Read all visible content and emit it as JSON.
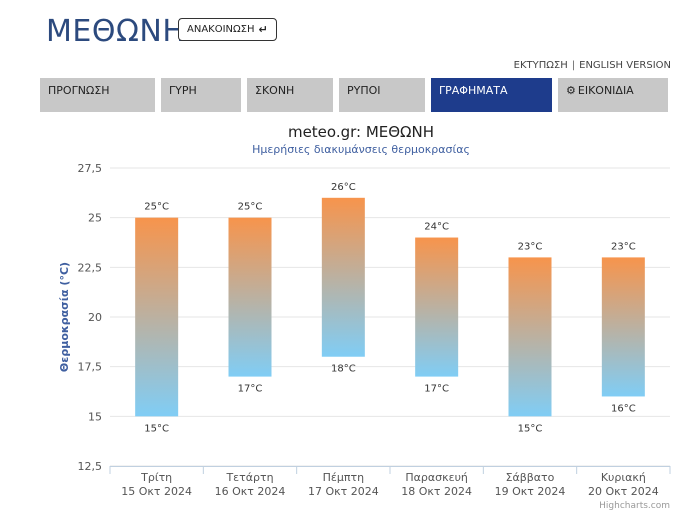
{
  "header": {
    "title": "ΜΕΘΩΝΗ",
    "announce_label": "ΑΝΑΚΟΙΝΩΣΗ",
    "announce_icon": "arrow-down-right-icon"
  },
  "top_links": {
    "print": "ΕΚΤΥΠΩΣΗ",
    "separator": "|",
    "english": "ENGLISH VERSION"
  },
  "tabs": [
    {
      "label": "ΠΡΟΓΝΩΣΗ",
      "active": false
    },
    {
      "label": "ΓΥΡΗ",
      "active": false
    },
    {
      "label": "ΣΚΟΝΗ",
      "active": false
    },
    {
      "label": "ΡΥΠΟΙ",
      "active": false
    },
    {
      "label": "ΓΡΑΦΗΜΑΤΑ",
      "active": true
    },
    {
      "label": "ΕΙΚΟΝΙΔΙΑ",
      "active": false,
      "icon": "gear-icon"
    }
  ],
  "chart_data": {
    "type": "bar",
    "title": "meteo.gr: ΜΕΘΩΝΗ",
    "subtitle": "Ημερήσιες διακυμάνσεις θερμοκρασίας",
    "ylabel": "Θερμοκρασία (°C)",
    "ylim": [
      12.5,
      27.5
    ],
    "yticks": [
      "12,5",
      "15",
      "17,5",
      "20",
      "22,5",
      "25",
      "27,5"
    ],
    "grid": true,
    "categories": [
      {
        "day": "Τρίτη",
        "date": "15 Οκτ 2024"
      },
      {
        "day": "Τετάρτη",
        "date": "16 Οκτ 2024"
      },
      {
        "day": "Πέμπτη",
        "date": "17 Οκτ 2024"
      },
      {
        "day": "Παρασκευή",
        "date": "18 Οκτ 2024"
      },
      {
        "day": "Σάββατο",
        "date": "19 Οκτ 2024"
      },
      {
        "day": "Κυριακή",
        "date": "20 Οκτ 2024"
      }
    ],
    "min": [
      15,
      17,
      18,
      17,
      15,
      16
    ],
    "max": [
      25,
      25,
      26,
      24,
      23,
      23
    ],
    "min_labels": [
      "15°C",
      "17°C",
      "18°C",
      "17°C",
      "15°C",
      "16°C"
    ],
    "max_labels": [
      "25°C",
      "25°C",
      "26°C",
      "24°C",
      "23°C",
      "23°C"
    ],
    "colors": {
      "top": "#f7944c",
      "bottom": "#80cdf5",
      "axis_title": "#3f5fa0",
      "title": "#222222",
      "subtitle": "#3f5fa0"
    },
    "credits": "Highcharts.com"
  }
}
